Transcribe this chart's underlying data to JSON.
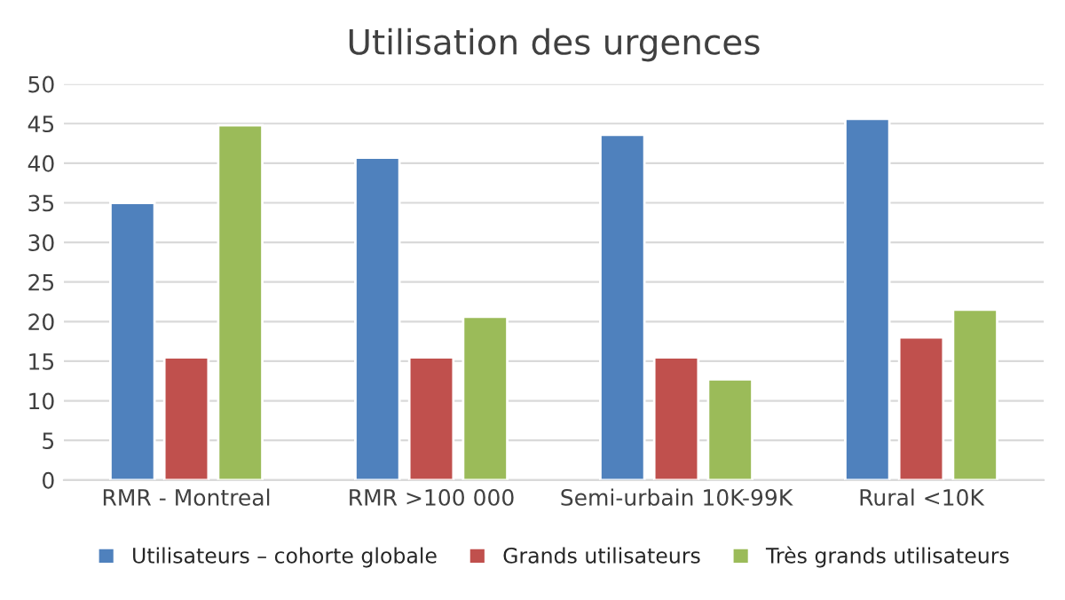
{
  "chart_data": {
    "type": "bar",
    "title": "Utilisation des urgences",
    "categories": [
      "RMR - Montreal",
      "RMR >100 000",
      "Semi-urbain 10K-99K",
      "Rural <10K"
    ],
    "series": [
      {
        "name": "Utilisateurs – cohorte globale",
        "color": "#4f81bd",
        "values": [
          35,
          40.7,
          43.6,
          45.6
        ]
      },
      {
        "name": "Grands utilisateurs",
        "color": "#c0504d",
        "values": [
          15.5,
          15.5,
          15.5,
          18
        ]
      },
      {
        "name": "Très grands utilisateurs",
        "color": "#9bbb59",
        "values": [
          44.8,
          20.6,
          12.7,
          21.5
        ]
      }
    ],
    "ylim": [
      0,
      50
    ],
    "yticks": [
      0,
      5,
      10,
      15,
      20,
      25,
      30,
      35,
      40,
      45,
      50
    ],
    "grid": "y",
    "legend": "bottom"
  }
}
